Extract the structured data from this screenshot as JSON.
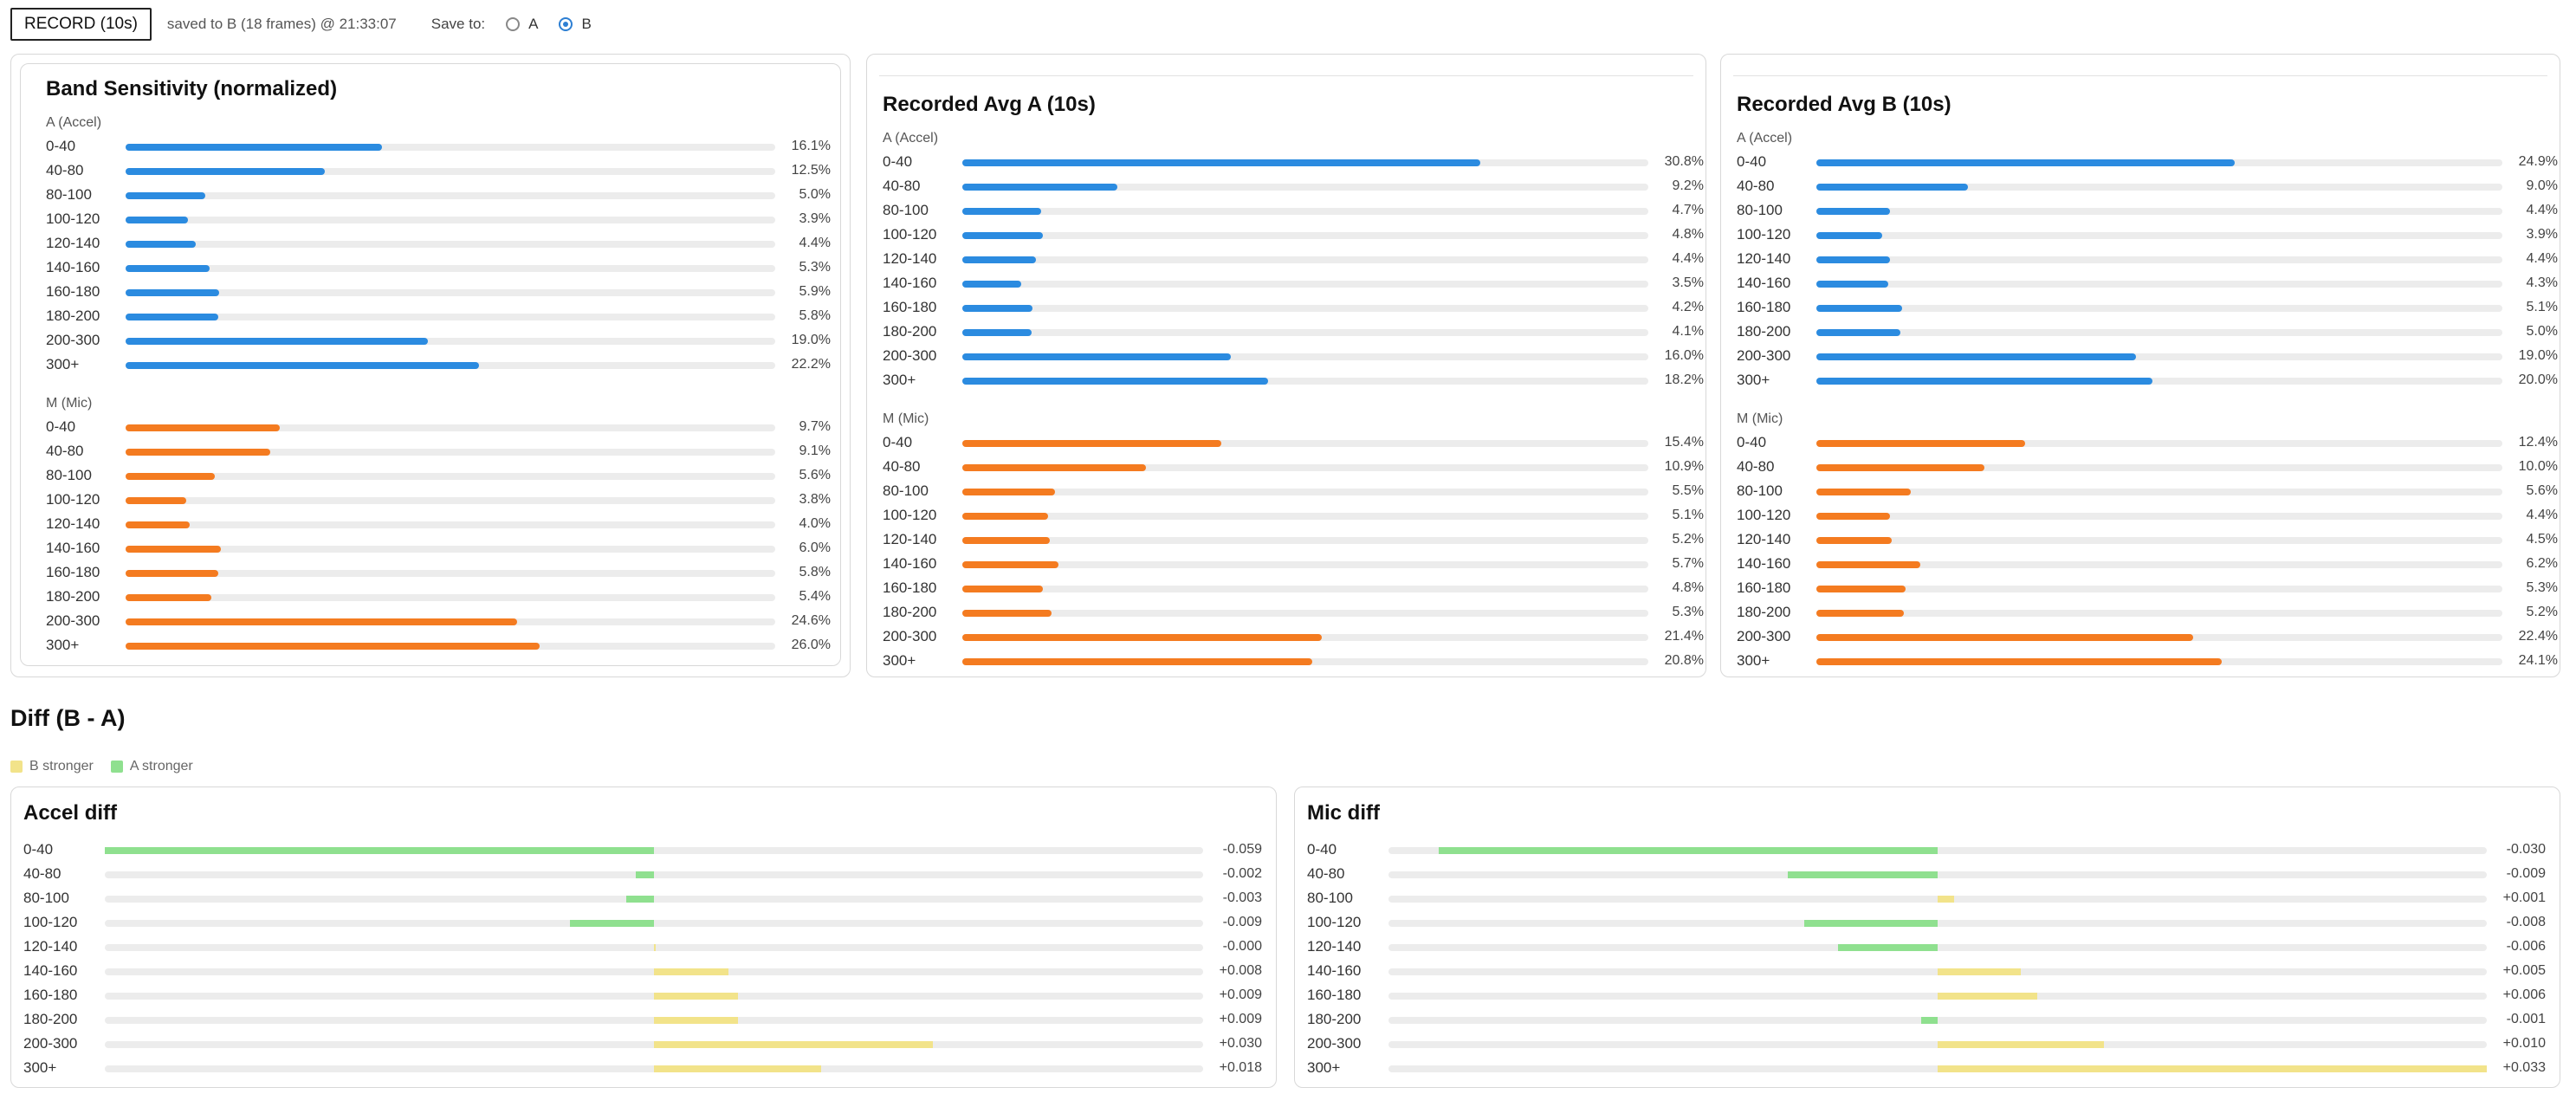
{
  "toolbar": {
    "record_label": "RECORD (10s)",
    "status": "saved to B (18 frames) @ 21:33:07",
    "save_to_label": "Save to:",
    "options": [
      {
        "label": "A",
        "checked": false
      },
      {
        "label": "B",
        "checked": true
      }
    ]
  },
  "colors": {
    "accel": "#2b8be0",
    "mic": "#f47b20",
    "b_stronger": "#f2e38a",
    "a_stronger": "#8fe08f"
  },
  "panels": [
    {
      "title": "Band Sensitivity (normalized)",
      "sections": [
        {
          "label": "A (Accel)",
          "kind": "accel",
          "rows": [
            {
              "band": "0-40",
              "value": 16.1,
              "text": "16.1%"
            },
            {
              "band": "40-80",
              "value": 12.5,
              "text": "12.5%"
            },
            {
              "band": "80-100",
              "value": 5.0,
              "text": "5.0%"
            },
            {
              "band": "100-120",
              "value": 3.9,
              "text": "3.9%"
            },
            {
              "band": "120-140",
              "value": 4.4,
              "text": "4.4%"
            },
            {
              "band": "140-160",
              "value": 5.3,
              "text": "5.3%"
            },
            {
              "band": "160-180",
              "value": 5.9,
              "text": "5.9%"
            },
            {
              "band": "180-200",
              "value": 5.8,
              "text": "5.8%"
            },
            {
              "band": "200-300",
              "value": 19.0,
              "text": "19.0%"
            },
            {
              "band": "300+",
              "value": 22.2,
              "text": "22.2%"
            }
          ]
        },
        {
          "label": "M (Mic)",
          "kind": "mic",
          "rows": [
            {
              "band": "0-40",
              "value": 9.7,
              "text": "9.7%"
            },
            {
              "band": "40-80",
              "value": 9.1,
              "text": "9.1%"
            },
            {
              "band": "80-100",
              "value": 5.6,
              "text": "5.6%"
            },
            {
              "band": "100-120",
              "value": 3.8,
              "text": "3.8%"
            },
            {
              "band": "120-140",
              "value": 4.0,
              "text": "4.0%"
            },
            {
              "band": "140-160",
              "value": 6.0,
              "text": "6.0%"
            },
            {
              "band": "160-180",
              "value": 5.8,
              "text": "5.8%"
            },
            {
              "band": "180-200",
              "value": 5.4,
              "text": "5.4%"
            },
            {
              "band": "200-300",
              "value": 24.6,
              "text": "24.6%"
            },
            {
              "band": "300+",
              "value": 26.0,
              "text": "26.0%"
            }
          ]
        }
      ]
    },
    {
      "title": "Recorded Avg A (10s)",
      "sections": [
        {
          "label": "A (Accel)",
          "kind": "accel",
          "rows": [
            {
              "band": "0-40",
              "value": 30.8,
              "text": "30.8%"
            },
            {
              "band": "40-80",
              "value": 9.2,
              "text": "9.2%"
            },
            {
              "band": "80-100",
              "value": 4.7,
              "text": "4.7%"
            },
            {
              "band": "100-120",
              "value": 4.8,
              "text": "4.8%"
            },
            {
              "band": "120-140",
              "value": 4.4,
              "text": "4.4%"
            },
            {
              "band": "140-160",
              "value": 3.5,
              "text": "3.5%"
            },
            {
              "band": "160-180",
              "value": 4.2,
              "text": "4.2%"
            },
            {
              "band": "180-200",
              "value": 4.1,
              "text": "4.1%"
            },
            {
              "band": "200-300",
              "value": 16.0,
              "text": "16.0%"
            },
            {
              "band": "300+",
              "value": 18.2,
              "text": "18.2%"
            }
          ]
        },
        {
          "label": "M (Mic)",
          "kind": "mic",
          "rows": [
            {
              "band": "0-40",
              "value": 15.4,
              "text": "15.4%"
            },
            {
              "band": "40-80",
              "value": 10.9,
              "text": "10.9%"
            },
            {
              "band": "80-100",
              "value": 5.5,
              "text": "5.5%"
            },
            {
              "band": "100-120",
              "value": 5.1,
              "text": "5.1%"
            },
            {
              "band": "120-140",
              "value": 5.2,
              "text": "5.2%"
            },
            {
              "band": "140-160",
              "value": 5.7,
              "text": "5.7%"
            },
            {
              "band": "160-180",
              "value": 4.8,
              "text": "4.8%"
            },
            {
              "band": "180-200",
              "value": 5.3,
              "text": "5.3%"
            },
            {
              "band": "200-300",
              "value": 21.4,
              "text": "21.4%"
            },
            {
              "band": "300+",
              "value": 20.8,
              "text": "20.8%"
            }
          ]
        }
      ]
    },
    {
      "title": "Recorded Avg B (10s)",
      "sections": [
        {
          "label": "A (Accel)",
          "kind": "accel",
          "rows": [
            {
              "band": "0-40",
              "value": 24.9,
              "text": "24.9%"
            },
            {
              "band": "40-80",
              "value": 9.0,
              "text": "9.0%"
            },
            {
              "band": "80-100",
              "value": 4.4,
              "text": "4.4%"
            },
            {
              "band": "100-120",
              "value": 3.9,
              "text": "3.9%"
            },
            {
              "band": "120-140",
              "value": 4.4,
              "text": "4.4%"
            },
            {
              "band": "140-160",
              "value": 4.3,
              "text": "4.3%"
            },
            {
              "band": "160-180",
              "value": 5.1,
              "text": "5.1%"
            },
            {
              "band": "180-200",
              "value": 5.0,
              "text": "5.0%"
            },
            {
              "band": "200-300",
              "value": 19.0,
              "text": "19.0%"
            },
            {
              "band": "300+",
              "value": 20.0,
              "text": "20.0%"
            }
          ]
        },
        {
          "label": "M (Mic)",
          "kind": "mic",
          "rows": [
            {
              "band": "0-40",
              "value": 12.4,
              "text": "12.4%"
            },
            {
              "band": "40-80",
              "value": 10.0,
              "text": "10.0%"
            },
            {
              "band": "80-100",
              "value": 5.6,
              "text": "5.6%"
            },
            {
              "band": "100-120",
              "value": 4.4,
              "text": "4.4%"
            },
            {
              "band": "120-140",
              "value": 4.5,
              "text": "4.5%"
            },
            {
              "band": "140-160",
              "value": 6.2,
              "text": "6.2%"
            },
            {
              "band": "160-180",
              "value": 5.3,
              "text": "5.3%"
            },
            {
              "band": "180-200",
              "value": 5.2,
              "text": "5.2%"
            },
            {
              "band": "200-300",
              "value": 22.4,
              "text": "22.4%"
            },
            {
              "band": "300+",
              "value": 24.1,
              "text": "24.1%"
            }
          ]
        }
      ]
    }
  ],
  "diff": {
    "title": "Diff (B - A)",
    "legend": [
      {
        "label": "B stronger",
        "color": "#f2e38a"
      },
      {
        "label": "A stronger",
        "color": "#8fe08f"
      }
    ],
    "charts": [
      {
        "title": "Accel diff",
        "rows": [
          {
            "band": "0-40",
            "value": -0.059,
            "text": "-0.059"
          },
          {
            "band": "40-80",
            "value": -0.002,
            "text": "-0.002"
          },
          {
            "band": "80-100",
            "value": -0.003,
            "text": "-0.003"
          },
          {
            "band": "100-120",
            "value": -0.009,
            "text": "-0.009"
          },
          {
            "band": "120-140",
            "value": -0.0,
            "text": "-0.000"
          },
          {
            "band": "140-160",
            "value": 0.008,
            "text": "+0.008"
          },
          {
            "band": "160-180",
            "value": 0.009,
            "text": "+0.009"
          },
          {
            "band": "180-200",
            "value": 0.009,
            "text": "+0.009"
          },
          {
            "band": "200-300",
            "value": 0.03,
            "text": "+0.030"
          },
          {
            "band": "300+",
            "value": 0.018,
            "text": "+0.018"
          }
        ]
      },
      {
        "title": "Mic diff",
        "rows": [
          {
            "band": "0-40",
            "value": -0.03,
            "text": "-0.030"
          },
          {
            "band": "40-80",
            "value": -0.009,
            "text": "-0.009"
          },
          {
            "band": "80-100",
            "value": 0.001,
            "text": "+0.001"
          },
          {
            "band": "100-120",
            "value": -0.008,
            "text": "-0.008"
          },
          {
            "band": "120-140",
            "value": -0.006,
            "text": "-0.006"
          },
          {
            "band": "140-160",
            "value": 0.005,
            "text": "+0.005"
          },
          {
            "band": "160-180",
            "value": 0.006,
            "text": "+0.006"
          },
          {
            "band": "180-200",
            "value": -0.001,
            "text": "-0.001"
          },
          {
            "band": "200-300",
            "value": 0.01,
            "text": "+0.010"
          },
          {
            "band": "300+",
            "value": 0.033,
            "text": "+0.033"
          }
        ]
      }
    ]
  }
}
